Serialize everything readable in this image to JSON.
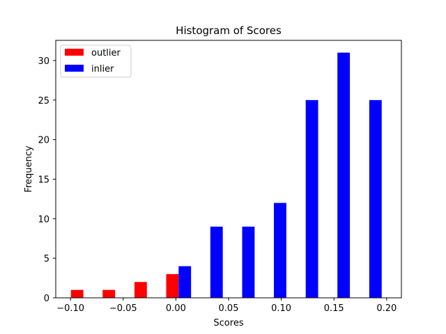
{
  "chart_data": {
    "type": "bar",
    "title": "Histogram of Scores",
    "xlabel": "Scores",
    "ylabel": "Frequency",
    "xlim": [
      -0.114,
      0.214
    ],
    "ylim": [
      0,
      32.55
    ],
    "x_ticks": [
      -0.1,
      -0.05,
      0.0,
      0.05,
      0.1,
      0.15,
      0.2
    ],
    "x_tick_labels": [
      "−0.10",
      "−0.05",
      "0.00",
      "0.05",
      "0.10",
      "0.15",
      "0.20"
    ],
    "y_ticks": [
      0,
      5,
      10,
      15,
      20,
      25,
      30
    ],
    "y_tick_labels": [
      "0",
      "5",
      "10",
      "15",
      "20",
      "25",
      "30"
    ],
    "grid": false,
    "legend_position": "top-left",
    "series": [
      {
        "name": "outlier",
        "color": "#ff0000",
        "bars": [
          {
            "x_start": -0.0996,
            "x_end": -0.0878,
            "value": 1
          },
          {
            "x_start": -0.0695,
            "x_end": -0.0577,
            "value": 1
          },
          {
            "x_start": -0.0393,
            "x_end": -0.0275,
            "value": 2
          },
          {
            "x_start": -0.0092,
            "x_end": 0.0026,
            "value": 3
          }
        ]
      },
      {
        "name": "inlier",
        "color": "#0000ff",
        "bars": [
          {
            "x_start": 0.0026,
            "x_end": 0.0144,
            "value": 4
          },
          {
            "x_start": 0.0327,
            "x_end": 0.0445,
            "value": 9
          },
          {
            "x_start": 0.0629,
            "x_end": 0.0747,
            "value": 9
          },
          {
            "x_start": 0.093,
            "x_end": 0.1048,
            "value": 12
          },
          {
            "x_start": 0.1232,
            "x_end": 0.135,
            "value": 25
          },
          {
            "x_start": 0.1533,
            "x_end": 0.1651,
            "value": 31
          },
          {
            "x_start": 0.1835,
            "x_end": 0.1953,
            "value": 25
          }
        ]
      }
    ]
  }
}
